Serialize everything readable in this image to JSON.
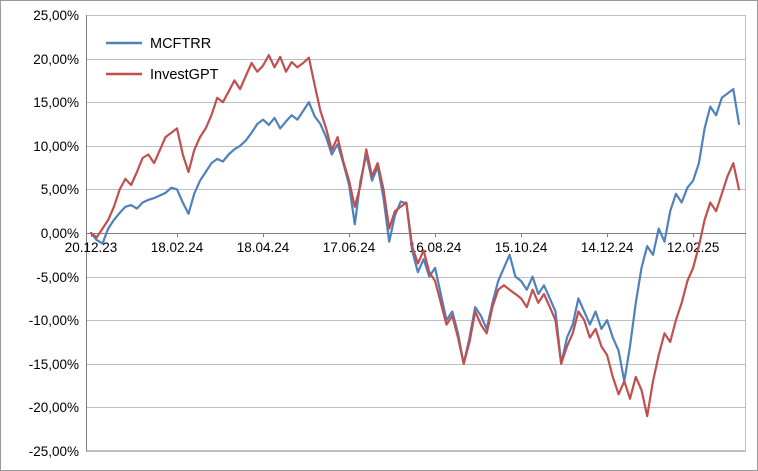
{
  "chart_data": {
    "type": "line",
    "title": "",
    "xlabel": "",
    "ylabel": "",
    "ylim": [
      -25,
      25
    ],
    "y_tick_step": 5,
    "y_tick_labels": [
      "25,00%",
      "20,00%",
      "15,00%",
      "10,00%",
      "5,00%",
      "0,00%",
      "-5,00%",
      "-10,00%",
      "-15,00%",
      "-20,00%",
      "-25,00%"
    ],
    "x_tick_labels": [
      "20.12.23",
      "18.02.24",
      "18.04.24",
      "17.06.24",
      "16.08.24",
      "15.10.24",
      "14.12.24",
      "12.02.25"
    ],
    "x_tick_indices": [
      0,
      15,
      30,
      45,
      60,
      75,
      90,
      105
    ],
    "grid": "horizontal",
    "grid_color": "#bfbfbf",
    "axis_color": "#808080",
    "legend_position": "top-left-inside",
    "series": [
      {
        "name": "MCFTRR",
        "color": "#4F81BD",
        "values": [
          0.0,
          -0.8,
          -1.2,
          0.5,
          1.5,
          2.3,
          3.0,
          3.2,
          2.8,
          3.5,
          3.8,
          4.0,
          4.3,
          4.6,
          5.2,
          5.0,
          3.5,
          2.2,
          4.5,
          6.0,
          7.0,
          8.0,
          8.5,
          8.2,
          9.0,
          9.6,
          10.0,
          10.6,
          11.5,
          12.5,
          13.0,
          12.4,
          13.2,
          12.0,
          12.8,
          13.5,
          13.0,
          14.0,
          15.0,
          13.4,
          12.5,
          11.0,
          9.0,
          10.2,
          8.0,
          5.5,
          1.0,
          6.0,
          9.0,
          6.0,
          7.6,
          4.0,
          -1.0,
          2.0,
          3.6,
          3.4,
          -2.0,
          -4.5,
          -3.0,
          -5.0,
          -4.0,
          -7.0,
          -10.0,
          -9.0,
          -11.5,
          -15.0,
          -12.0,
          -8.5,
          -9.5,
          -11.0,
          -8.0,
          -5.5,
          -4.0,
          -2.5,
          -5.0,
          -5.5,
          -6.5,
          -5.0,
          -7.0,
          -6.0,
          -7.5,
          -9.0,
          -15.0,
          -12.0,
          -10.5,
          -7.5,
          -9.0,
          -10.5,
          -9.0,
          -11.0,
          -10.0,
          -12.0,
          -13.5,
          -17.0,
          -13.0,
          -8.0,
          -4.0,
          -1.5,
          -2.5,
          0.5,
          -1.0,
          2.5,
          4.5,
          3.5,
          5.2,
          6.0,
          8.0,
          12.0,
          14.5,
          13.5,
          15.5,
          16.0,
          16.5,
          12.5
        ]
      },
      {
        "name": "InvestGPT",
        "color": "#C0504D",
        "values": [
          0.0,
          -0.5,
          0.5,
          1.5,
          3.0,
          5.0,
          6.2,
          5.5,
          7.0,
          8.6,
          9.0,
          8.0,
          9.5,
          11.0,
          11.5,
          12.0,
          9.0,
          7.0,
          9.5,
          11.0,
          12.0,
          13.5,
          15.5,
          15.0,
          16.2,
          17.5,
          16.5,
          18.0,
          19.5,
          18.5,
          19.2,
          20.4,
          19.0,
          20.2,
          18.5,
          19.6,
          19.0,
          19.5,
          20.1,
          17.0,
          14.0,
          12.0,
          9.5,
          11.0,
          8.2,
          6.0,
          3.0,
          5.5,
          9.6,
          6.5,
          8.0,
          5.0,
          0.5,
          2.5,
          3.0,
          3.5,
          -1.5,
          -3.5,
          -2.0,
          -4.5,
          -5.5,
          -8.0,
          -10.5,
          -9.5,
          -12.0,
          -15.0,
          -12.5,
          -9.0,
          -10.5,
          -11.5,
          -8.5,
          -6.5,
          -6.0,
          -6.5,
          -7.0,
          -7.5,
          -8.5,
          -6.5,
          -8.0,
          -7.0,
          -8.5,
          -10.0,
          -15.0,
          -13.0,
          -11.5,
          -9.0,
          -10.0,
          -12.0,
          -11.0,
          -13.0,
          -14.0,
          -16.5,
          -18.5,
          -17.0,
          -19.0,
          -16.5,
          -18.0,
          -21.0,
          -17.0,
          -14.0,
          -11.5,
          -12.5,
          -10.0,
          -8.0,
          -5.5,
          -4.0,
          -1.5,
          1.5,
          3.5,
          2.5,
          4.5,
          6.5,
          8.0,
          5.0
        ]
      }
    ]
  }
}
